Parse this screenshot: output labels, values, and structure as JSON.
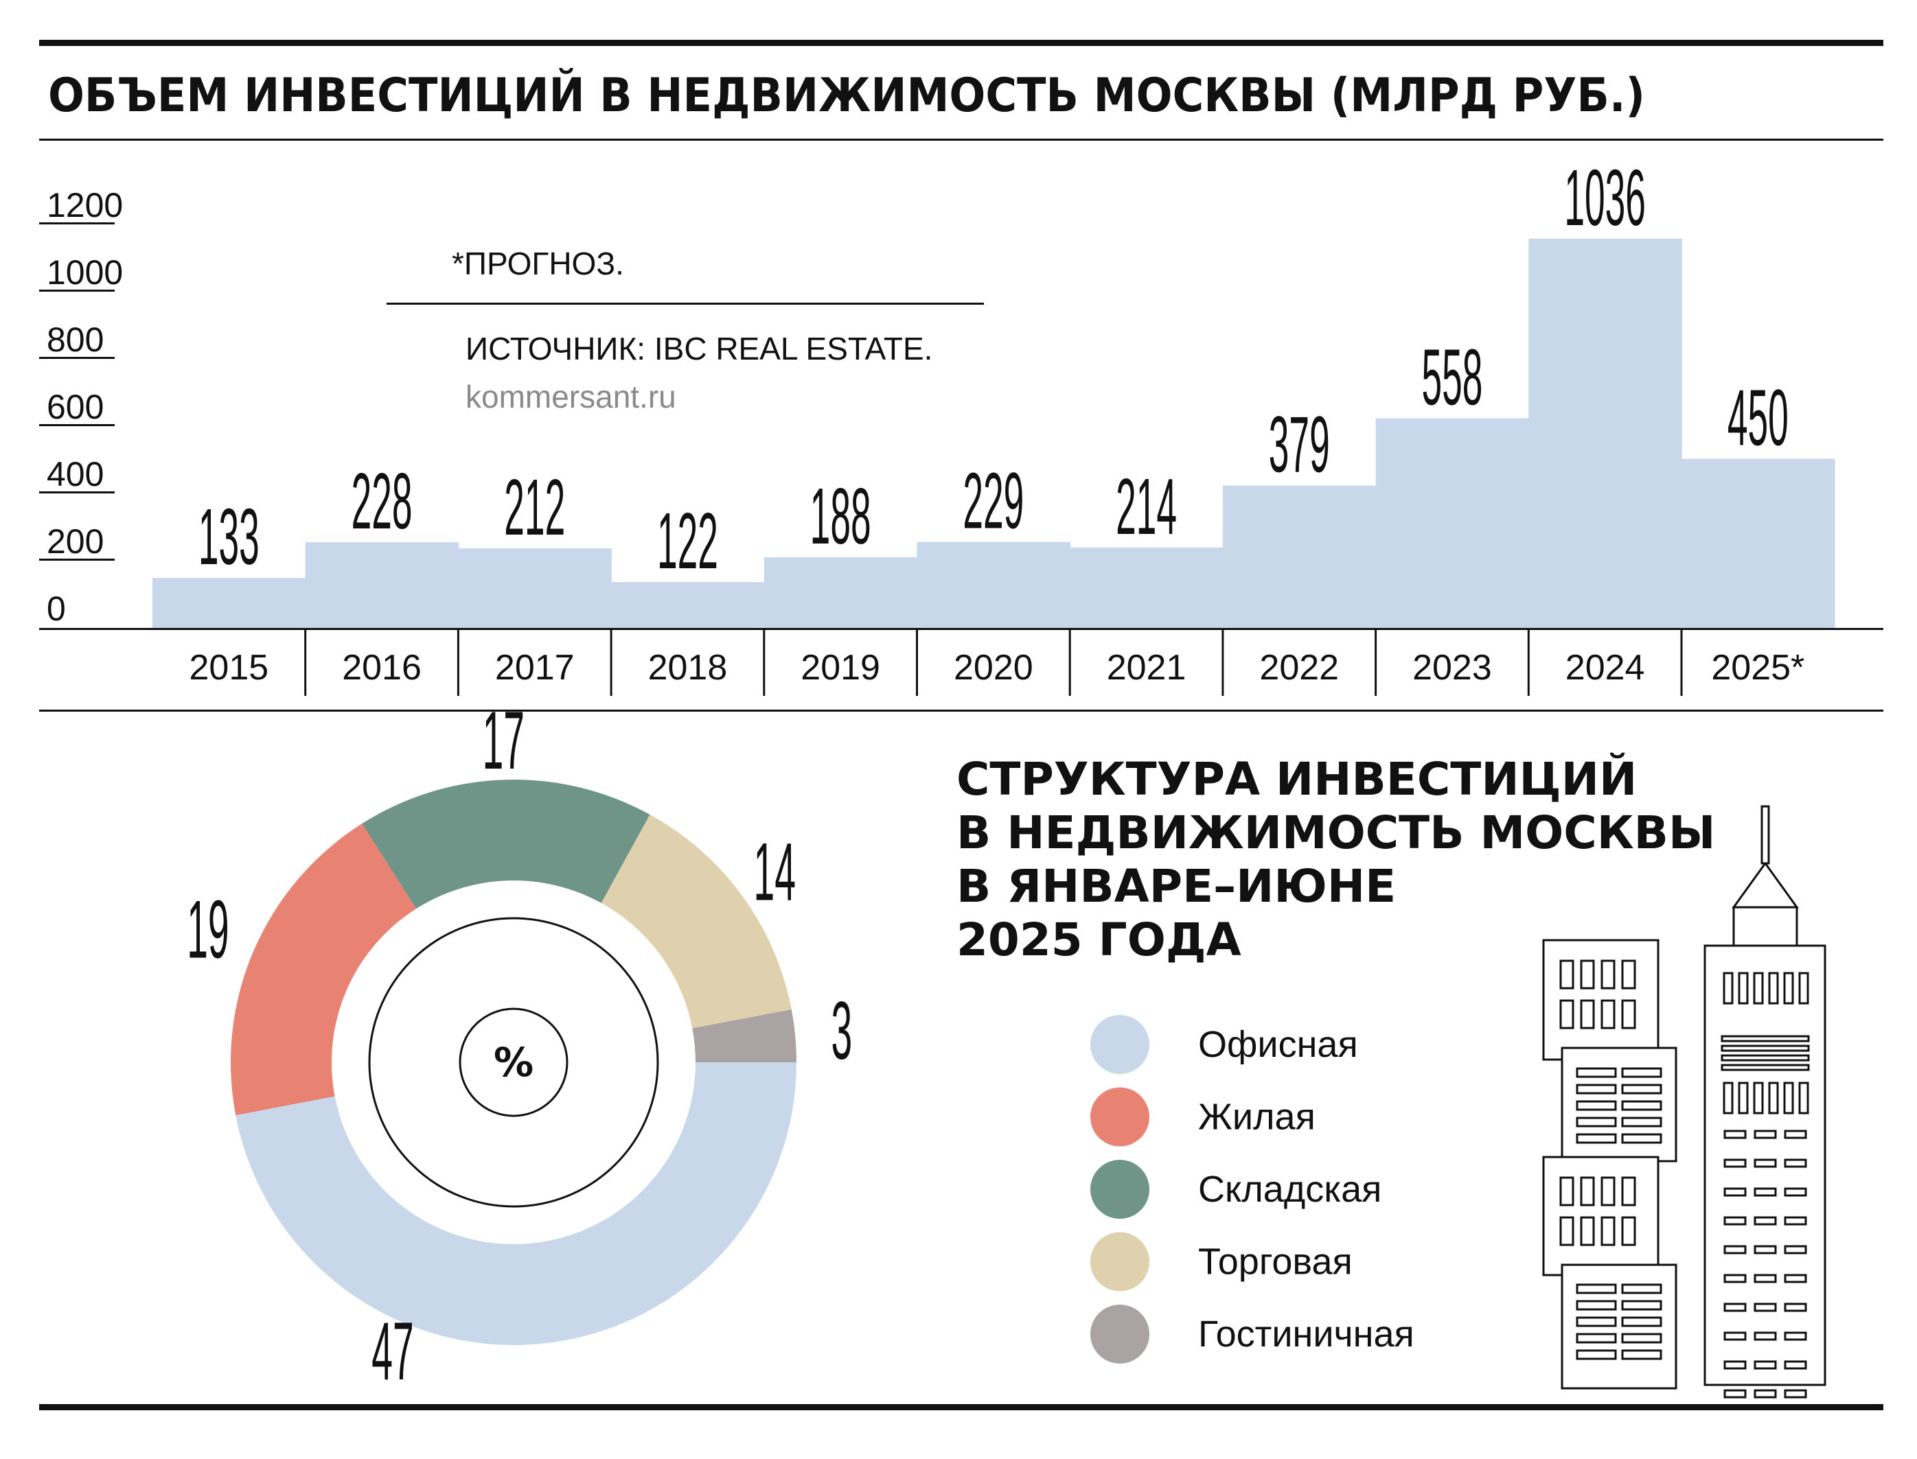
{
  "header": {
    "title": "ОБЪЕМ ИНВЕСТИЦИЙ В НЕДВИЖИМОСТЬ МОСКВЫ (МЛРД РУБ.)"
  },
  "notes": {
    "forecast": "*ПРОГНОЗ.",
    "source": "ИСТОЧНИК: IBC REAL ESTATE.",
    "site": "kommersant.ru"
  },
  "pie_section": {
    "title_lines": [
      "СТРУКТУРА ИНВЕСТИЦИЙ",
      "В НЕДВИЖИМОСТЬ МОСКВЫ",
      "В ЯНВАРЕ–ИЮНЕ",
      "2025 ГОДА"
    ],
    "center_label": "%"
  },
  "colors": {
    "bar": "#c8d8ea",
    "office": "#c8d8ea",
    "residential": "#e88373",
    "warehouse": "#6f9488",
    "retail": "#dfd0ae",
    "hotel": "#a9a3a3",
    "rules": "#111111"
  },
  "icons": [
    "skyscraper-illustration"
  ],
  "chart_data": [
    {
      "type": "bar",
      "title": "ОБЪЕМ ИНВЕСТИЦИЙ В НЕДВИЖИМОСТЬ МОСКВЫ (МЛРД РУБ.)",
      "categories": [
        "2015",
        "2016",
        "2017",
        "2018",
        "2019",
        "2020",
        "2021",
        "2022",
        "2023",
        "2024",
        "2025*"
      ],
      "values": [
        133,
        228,
        212,
        122,
        188,
        229,
        214,
        379,
        558,
        1036,
        450
      ],
      "value_labels": [
        "133",
        "228",
        "212",
        "122",
        "188",
        "229",
        "214",
        "379",
        "558",
        "1036",
        "450"
      ],
      "yticks": [
        "0",
        "200",
        "400",
        "600",
        "800",
        "1000",
        "1200"
      ],
      "ylim": [
        0,
        1200
      ],
      "grid": false
    },
    {
      "type": "pie",
      "title": "СТРУКТУРА ИНВЕСТИЦИЙ В НЕДВИЖИМОСТЬ МОСКВЫ В ЯНВАРЕ–ИЮНЕ 2025 ГОДА",
      "unit": "%",
      "slices": [
        {
          "name": "Офисная",
          "value": 47,
          "label": "47",
          "color": "#c8d8ea"
        },
        {
          "name": "Жилая",
          "value": 19,
          "label": "19",
          "color": "#e88373"
        },
        {
          "name": "Складская",
          "value": 17,
          "label": "17",
          "color": "#6f9488"
        },
        {
          "name": "Торговая",
          "value": 14,
          "label": "14",
          "color": "#dfd0ae"
        },
        {
          "name": "Гостиничная",
          "value": 3,
          "label": "3",
          "color": "#a9a3a3"
        }
      ],
      "legend_placement": "right"
    }
  ]
}
